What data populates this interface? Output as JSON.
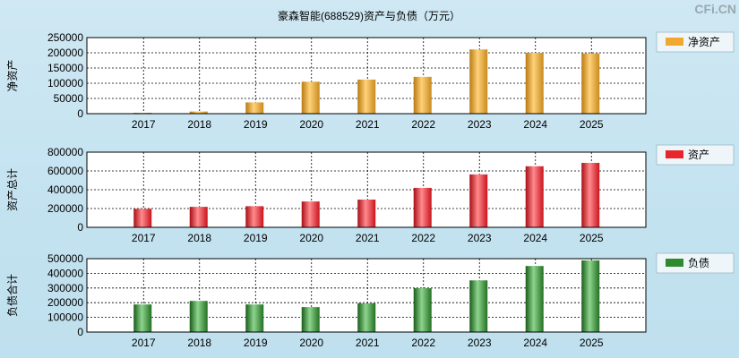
{
  "title": "豪森智能(688529)资产与负债（万元）",
  "watermark": "CFi.CN",
  "colors": {
    "background": "#c6e3f1",
    "plot_bg": "#ffffff",
    "net_assets": "#f0a830",
    "assets": "#e8242c",
    "liabilities": "#2f8a2f"
  },
  "chart_data": [
    {
      "type": "bar",
      "title": "豪森智能(688529)资产与负债（万元）",
      "ylabel": "净资产",
      "legend": "净资产",
      "legend_position": "right",
      "categories": [
        "2017",
        "2018",
        "2019",
        "2020",
        "2021",
        "2022",
        "2023",
        "2024",
        "2025"
      ],
      "values": [
        2000,
        7000,
        37000,
        105000,
        112000,
        121000,
        211000,
        200000,
        198000
      ],
      "yticks": [
        "250000",
        "200000",
        "150000",
        "100000",
        "50000",
        "0"
      ],
      "ylim": [
        0,
        250000
      ],
      "grid": true,
      "color": "#f0a830"
    },
    {
      "type": "bar",
      "ylabel": "资产总计",
      "legend": "资产",
      "legend_position": "right",
      "categories": [
        "2017",
        "2018",
        "2019",
        "2020",
        "2021",
        "2022",
        "2023",
        "2024",
        "2025"
      ],
      "values": [
        197000,
        218000,
        225000,
        275000,
        295000,
        420000,
        563000,
        650000,
        686000
      ],
      "yticks": [
        "800000",
        "600000",
        "400000",
        "200000",
        "0"
      ],
      "ylim": [
        0,
        800000
      ],
      "grid": true,
      "color": "#e8242c"
    },
    {
      "type": "bar",
      "ylabel": "负债合计",
      "legend": "负债",
      "legend_position": "right",
      "categories": [
        "2017",
        "2018",
        "2019",
        "2020",
        "2021",
        "2022",
        "2023",
        "2024",
        "2025"
      ],
      "values": [
        188000,
        212000,
        188000,
        170000,
        196000,
        299000,
        352000,
        450000,
        488000
      ],
      "yticks": [
        "500000",
        "400000",
        "300000",
        "200000",
        "100000",
        "0"
      ],
      "ylim": [
        0,
        500000
      ],
      "grid": true,
      "color": "#2f8a2f"
    }
  ]
}
